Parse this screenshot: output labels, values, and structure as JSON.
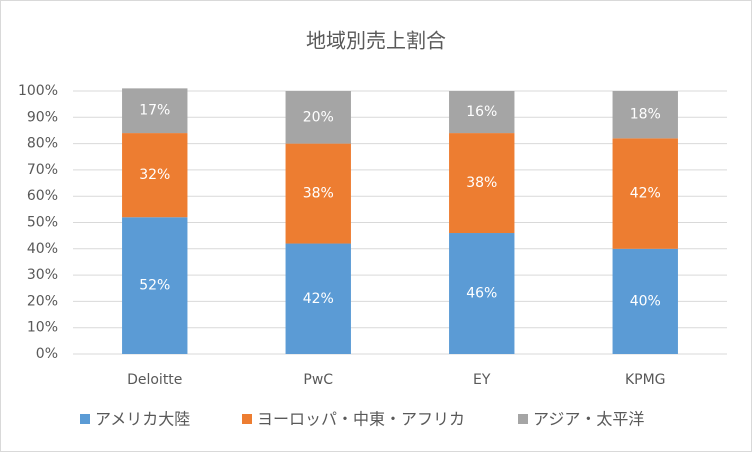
{
  "chart_data": {
    "type": "stacked_bar",
    "title": "地域別売上割合",
    "categories": [
      "Deloitte",
      "PwC",
      "EY",
      "KPMG"
    ],
    "series": [
      {
        "name": "アメリカ大陸",
        "color": "#5b9bd5",
        "values": [
          52,
          42,
          46,
          40
        ],
        "value_labels": [
          "52%",
          "42%",
          "46%",
          "40%"
        ]
      },
      {
        "name": "ヨーロッパ・中東・アフリカ",
        "color": "#ed7d31",
        "values": [
          32,
          38,
          38,
          42
        ],
        "value_labels": [
          "32%",
          "38%",
          "38%",
          "42%"
        ]
      },
      {
        "name": "アジア・太平洋",
        "color": "#a5a5a5",
        "values": [
          17,
          20,
          16,
          18
        ],
        "value_labels": [
          "17%",
          "20%",
          "16%",
          "18%"
        ]
      }
    ],
    "ylim": [
      0,
      100
    ],
    "yticks": [
      {
        "value": 0,
        "label": "0%"
      },
      {
        "value": 10,
        "label": "10%"
      },
      {
        "value": 20,
        "label": "20%"
      },
      {
        "value": 30,
        "label": "30%"
      },
      {
        "value": 40,
        "label": "40%"
      },
      {
        "value": 50,
        "label": "50%"
      },
      {
        "value": 60,
        "label": "60%"
      },
      {
        "value": 70,
        "label": "70%"
      },
      {
        "value": 80,
        "label": "80%"
      },
      {
        "value": 90,
        "label": "90%"
      },
      {
        "value": 100,
        "label": "100%"
      }
    ],
    "grid": true,
    "legend": "bottom"
  }
}
